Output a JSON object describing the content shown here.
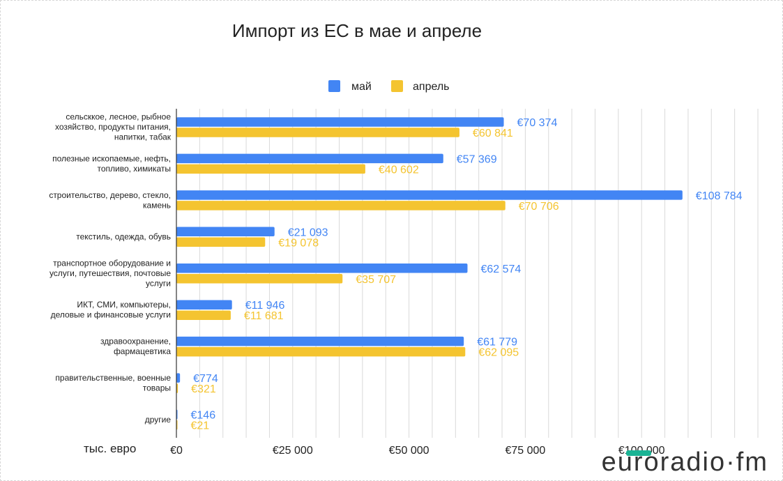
{
  "chart_data": {
    "type": "bar",
    "orientation": "horizontal",
    "title": "Импорт из ЕС в мае и апреле",
    "xlabel": "тыс. евро",
    "ylabel": "",
    "xlim": [
      0,
      125000
    ],
    "grid": true,
    "legend_position": "top",
    "categories": [
      [
        "сельсккое, лесное, рыбное",
        "хозяйство, продукты питания,",
        "напитки, табак"
      ],
      [
        "полезные ископаемые, нефть,",
        "топливо, химикаты"
      ],
      [
        "строительство, дерево, стекло,",
        "камень"
      ],
      [
        "текстиль, одежда, обувь"
      ],
      [
        "транспортное оборудование и",
        "услуги, путешествия, почтовые",
        "услуги"
      ],
      [
        "ИКТ, СМИ, компьютеры,",
        "деловые и финансовые услуги"
      ],
      [
        "здравоохранение,",
        "фармацевтика"
      ],
      [
        "правительственные, военные",
        "товары"
      ],
      [
        "другие"
      ]
    ],
    "series": [
      {
        "name": "май",
        "color": "#4285f4",
        "values": [
          70374,
          57369,
          108784,
          21093,
          62574,
          11946,
          61779,
          774,
          146
        ],
        "labels": [
          "€70 374",
          "€57 369",
          "€108 784",
          "€21 093",
          "€62 574",
          "€11 946",
          "€61 779",
          "€774",
          "€146"
        ]
      },
      {
        "name": "апрель",
        "color": "#f4c430",
        "values": [
          60841,
          40602,
          70706,
          19078,
          35707,
          11681,
          62095,
          321,
          21
        ],
        "labels": [
          "€60 841",
          "€40 602",
          "€70 706",
          "€19 078",
          "€35 707",
          "€11 681",
          "€62 095",
          "€321",
          "€21"
        ]
      }
    ],
    "x_ticks": [
      {
        "value": 0,
        "label": "€0"
      },
      {
        "value": 25000,
        "label": "€25 000"
      },
      {
        "value": 50000,
        "label": "€50 000"
      },
      {
        "value": 75000,
        "label": "€75 000"
      },
      {
        "value": 100000,
        "label": "€100 000"
      }
    ]
  },
  "watermark": {
    "text": "euroradio·fm",
    "accent_color": "#1ab394"
  }
}
